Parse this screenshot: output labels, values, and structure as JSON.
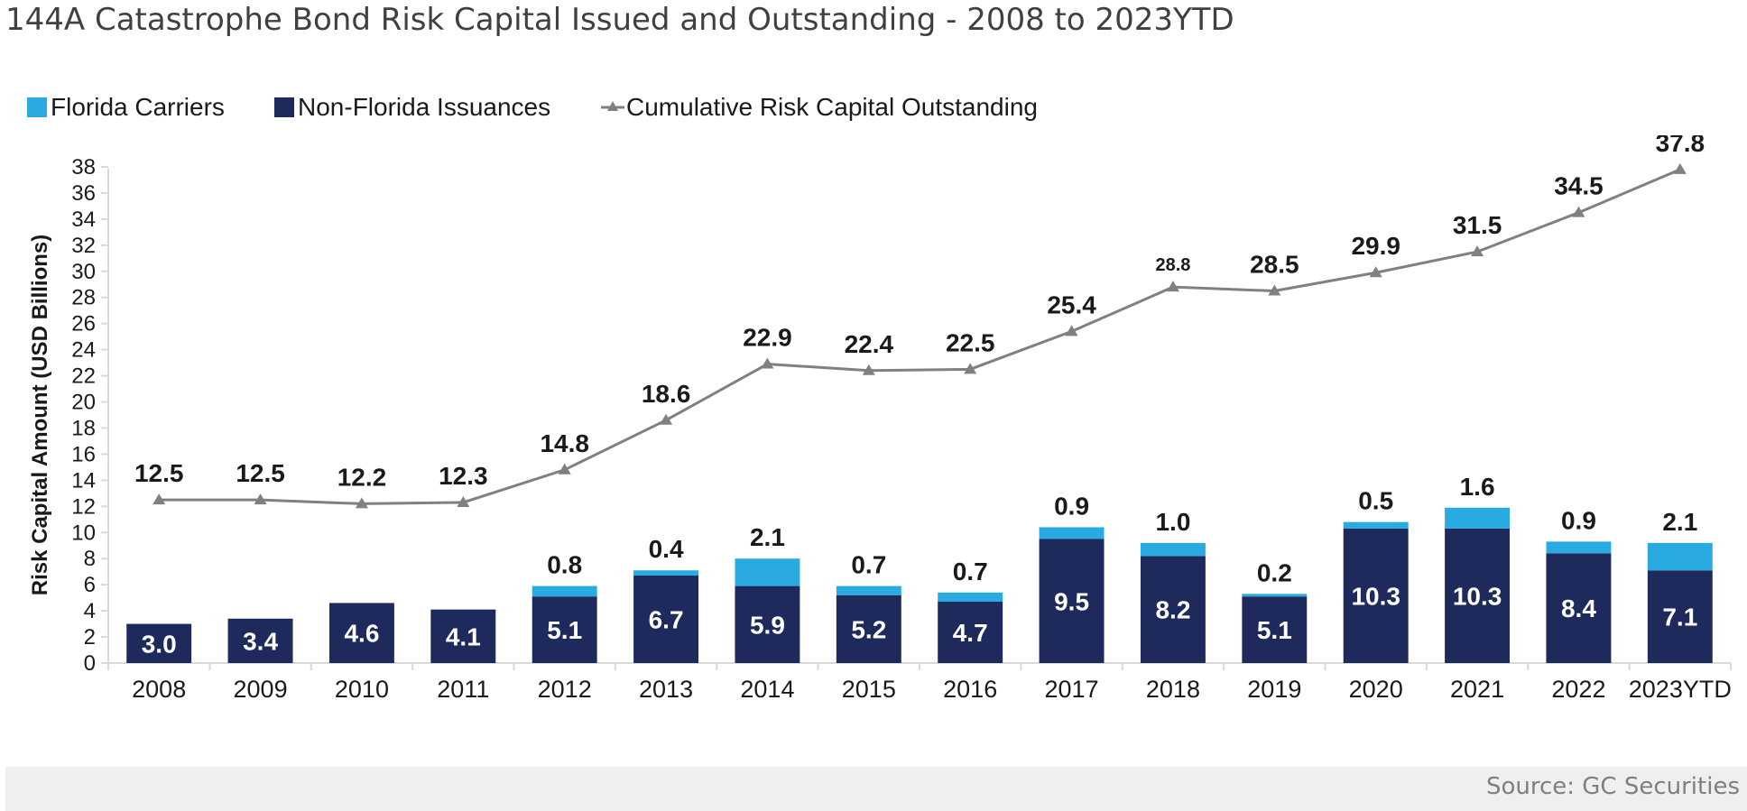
{
  "title": "144A Catastrophe Bond Risk Capital Issued and Outstanding - 2008 to 2023YTD",
  "source": "Source: GC Securities",
  "colors": {
    "florida": "#29abe2",
    "non_florida": "#1f2a5c",
    "cumulative": "#808080",
    "axis": "#d9d9d9"
  },
  "legend": {
    "florida": "Florida Carriers",
    "non_florida": "Non-Florida Issuances",
    "cumulative": "Cumulative Risk Capital Outstanding"
  },
  "chart_data": {
    "type": "bar",
    "stacked": true,
    "ylabel": "Risk Capital Amount (USD Billions)",
    "xlabel": "",
    "ylim": [
      0,
      38
    ],
    "yticks": [
      0,
      2,
      4,
      6,
      8,
      10,
      12,
      14,
      16,
      18,
      20,
      22,
      24,
      26,
      28,
      30,
      32,
      34,
      36,
      38
    ],
    "grid": false,
    "legend_position": "top-left",
    "categories": [
      "2008",
      "2009",
      "2010",
      "2011",
      "2012",
      "2013",
      "2014",
      "2015",
      "2016",
      "2017",
      "2018",
      "2019",
      "2020",
      "2021",
      "2022",
      "2023YTD"
    ],
    "series": [
      {
        "name": "Non-Florida Issuances",
        "type": "bar",
        "values": [
          3.0,
          3.4,
          4.6,
          4.1,
          5.1,
          6.7,
          5.9,
          5.2,
          4.7,
          9.5,
          8.2,
          5.1,
          10.3,
          10.3,
          8.4,
          7.1
        ],
        "labels": [
          "3.0",
          "3.4",
          "4.6",
          "4.1",
          "5.1",
          "6.7",
          "5.9",
          "5.2",
          "4.7",
          "9.5",
          "8.2",
          "5.1",
          "10.3",
          "10.3",
          "8.4",
          "7.1"
        ]
      },
      {
        "name": "Florida Carriers",
        "type": "bar",
        "values": [
          0,
          0,
          0,
          0,
          0.8,
          0.4,
          2.1,
          0.7,
          0.7,
          0.9,
          1.0,
          0.2,
          0.5,
          1.6,
          0.9,
          2.1
        ],
        "labels": [
          "",
          "",
          "",
          "",
          "0.8",
          "0.4",
          "2.1",
          "0.7",
          "0.7",
          "0.9",
          "1.0",
          "0.2",
          "0.5",
          "1.6",
          "0.9",
          "2.1"
        ]
      },
      {
        "name": "Cumulative Risk Capital Outstanding",
        "type": "line",
        "values": [
          12.5,
          12.5,
          12.2,
          12.3,
          14.8,
          18.6,
          22.9,
          22.4,
          22.5,
          25.4,
          28.8,
          28.5,
          29.9,
          31.5,
          34.5,
          37.8
        ],
        "labels": [
          "12.5",
          "12.5",
          "12.2",
          "12.3",
          "14.8",
          "18.6",
          "22.9",
          "22.4",
          "22.5",
          "25.4",
          "28.8",
          "28.5",
          "29.9",
          "31.5",
          "34.5",
          "37.8"
        ]
      }
    ]
  }
}
